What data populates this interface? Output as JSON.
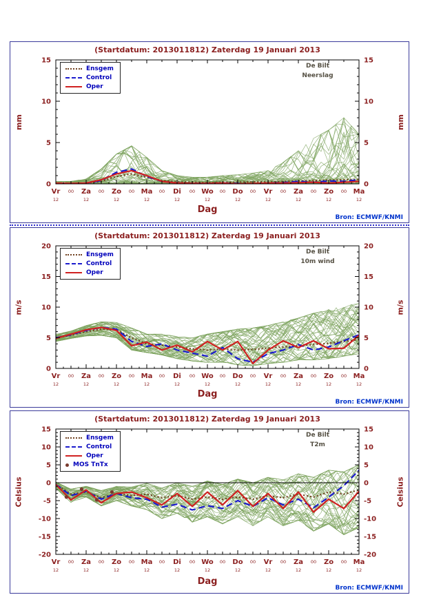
{
  "chart_data": [
    {
      "type": "line",
      "title": "(Startdatum: 2013011812)  Zaterdag 19 Januari  2013",
      "station": "De Bilt",
      "variable": "Neerslag",
      "ylabel": "mm",
      "xlabel": "Dag",
      "source": "Bron: ECMWF/KNMI",
      "ylim": [
        0,
        15
      ],
      "yticks": [
        0,
        5,
        10,
        15
      ],
      "y_minor_step": 1,
      "x_days": 10,
      "day_labels": [
        "Vr",
        "Za",
        "Zo",
        "Ma",
        "Di",
        "Wo",
        "Do",
        "Vr",
        "Za",
        "Zo",
        "Ma"
      ],
      "hour_label_mid": "00",
      "hour_label_day": "12",
      "legend": [
        {
          "label": "Ensgem",
          "style": "dotted",
          "color": "#70401f"
        },
        {
          "label": "Control",
          "style": "dashed",
          "color": "#1a1acd"
        },
        {
          "label": "Oper",
          "style": "solid",
          "color": "#d02020"
        }
      ],
      "series": [
        {
          "name": "Ensgem",
          "color": "#70401f",
          "style": "dotted",
          "values": [
            0.05,
            0.05,
            0.1,
            0.3,
            0.9,
            1.2,
            0.8,
            0.4,
            0.25,
            0.2,
            0.15,
            0.2,
            0.2,
            0.25,
            0.25,
            0.3,
            0.35,
            0.4,
            0.45,
            0.5,
            0.55
          ]
        },
        {
          "name": "Control",
          "color": "#1a1acd",
          "style": "dashed",
          "values": [
            0.05,
            0,
            0.1,
            0.4,
            1.4,
            1.8,
            0.9,
            0.3,
            0.1,
            0.05,
            0.05,
            0.1,
            0.05,
            0,
            0.1,
            0.15,
            0.3,
            0.2,
            0.35,
            0.3,
            0.5
          ]
        },
        {
          "name": "Oper",
          "color": "#d02020",
          "style": "solid",
          "values": [
            0.1,
            0.05,
            0.1,
            0.5,
            1.2,
            1.6,
            1,
            0.3,
            0.1,
            0.05,
            0.05,
            0.1,
            0,
            0.05,
            0.1,
            0.1,
            0.15,
            0.2,
            0.1,
            0.2,
            0.3
          ]
        }
      ],
      "ensemble": {
        "count": 50,
        "color": "#7ca35c",
        "bias": 2.6,
        "min": [
          0,
          0,
          0,
          0,
          0,
          0,
          0,
          0,
          0,
          0,
          0,
          0,
          0,
          0,
          0,
          0,
          0,
          0,
          0,
          0,
          0
        ],
        "max": [
          0.3,
          0.3,
          0.6,
          1.8,
          3.6,
          4.6,
          3.2,
          1.6,
          1,
          0.8,
          0.8,
          1,
          1.1,
          1.3,
          1.6,
          2.6,
          4,
          5.5,
          6.5,
          8,
          6
        ]
      }
    },
    {
      "type": "line",
      "title": "(Startdatum: 2013011812)  Zaterdag 19 Januari  2013",
      "station": "De Bilt",
      "variable": "10m wind",
      "ylabel": "m/s",
      "xlabel": "Dag",
      "source": "Bron: ECMWF/KNMI",
      "ylim": [
        0,
        20
      ],
      "yticks": [
        0,
        5,
        10,
        15,
        20
      ],
      "y_minor_step": 1,
      "x_days": 10,
      "day_labels": [
        "Vr",
        "Za",
        "Zo",
        "Ma",
        "Di",
        "Wo",
        "Do",
        "Vr",
        "Za",
        "Zo",
        "Ma"
      ],
      "hour_label_mid": "00",
      "hour_label_day": "12",
      "legend": [
        {
          "label": "Ensgem",
          "style": "dotted",
          "color": "#70401f"
        },
        {
          "label": "Control",
          "style": "dashed",
          "color": "#1a1acd"
        },
        {
          "label": "Oper",
          "style": "solid",
          "color": "#d02020"
        }
      ],
      "series": [
        {
          "name": "Ensgem",
          "color": "#70401f",
          "style": "dotted",
          "values": [
            5,
            5.4,
            6,
            6.4,
            6.3,
            5,
            4,
            3.8,
            3.5,
            3.2,
            3,
            3.2,
            3,
            3.1,
            3.3,
            3.5,
            3.7,
            3.9,
            4.1,
            4.4,
            4.7
          ]
        },
        {
          "name": "Control",
          "color": "#1a1acd",
          "style": "dashed",
          "values": [
            5,
            5.5,
            6.2,
            6.7,
            6.4,
            4.4,
            3.6,
            4,
            3,
            2.5,
            2,
            3.4,
            1.6,
            1,
            2.4,
            3,
            3.9,
            3,
            3.5,
            4.5,
            5.5
          ]
        },
        {
          "name": "Oper",
          "color": "#d02020",
          "style": "solid",
          "values": [
            4.9,
            5.6,
            6.3,
            6.7,
            6.2,
            3.7,
            4.3,
            3,
            3.8,
            2.7,
            4.4,
            3,
            4.4,
            0.8,
            3,
            4.5,
            3.4,
            4.5,
            3.2,
            3.3,
            5.4
          ]
        }
      ],
      "ensemble": {
        "count": 50,
        "color": "#7ca35c",
        "bias": 1,
        "min": [
          4.4,
          4.9,
          5.3,
          5.4,
          5,
          3,
          2.6,
          2.2,
          1.6,
          1.2,
          1,
          1,
          0.6,
          0.4,
          0.8,
          1,
          1.4,
          1.4,
          1.6,
          2,
          2.4
        ],
        "max": [
          5.6,
          6.1,
          7,
          7.6,
          7.5,
          6.6,
          5.6,
          5.6,
          5.2,
          5,
          5.6,
          6,
          6.4,
          6.6,
          7,
          7.6,
          8.2,
          9,
          9.6,
          10.2,
          10.6
        ]
      }
    },
    {
      "type": "line",
      "title": "(Startdatum: 2013011812)  Zaterdag 19 Januari  2013",
      "station": "De Bilt",
      "variable": "T2m",
      "ylabel": "Celsius",
      "xlabel": "Dag",
      "source": "Bron: ECMWF/KNMI",
      "ylim": [
        -20,
        15
      ],
      "yticks": [
        -20,
        -15,
        -10,
        -5,
        0,
        5,
        10,
        15
      ],
      "y_minor_step": 1,
      "x_days": 10,
      "zero_line": true,
      "day_labels": [
        "Vr",
        "Za",
        "Zo",
        "Ma",
        "Di",
        "Wo",
        "Do",
        "Vr",
        "Za",
        "Zo",
        "Ma"
      ],
      "hour_label_mid": "00",
      "hour_label_day": "12",
      "legend": [
        {
          "label": "Ensgem",
          "style": "dotted",
          "color": "#70401f"
        },
        {
          "label": "Control",
          "style": "dashed",
          "color": "#1a1acd"
        },
        {
          "label": "Oper",
          "style": "solid",
          "color": "#d02020"
        },
        {
          "label": "MOS TnTx",
          "style": "dot",
          "color": "#7a3b2e"
        }
      ],
      "series": [
        {
          "name": "Ensgem",
          "color": "#70401f",
          "style": "dotted",
          "values": [
            -0.5,
            -3.2,
            -2.6,
            -4.2,
            -3,
            -3.6,
            -3.2,
            -4.2,
            -3.6,
            -4.6,
            -4,
            -4.6,
            -4,
            -4.6,
            -3.6,
            -4.2,
            -3.2,
            -4,
            -2.6,
            -3.2,
            -2
          ]
        },
        {
          "name": "Control",
          "color": "#1a1acd",
          "style": "dashed",
          "values": [
            -0.5,
            -3.6,
            -2.4,
            -4.6,
            -3,
            -4.2,
            -4.6,
            -6.8,
            -6,
            -7.6,
            -6.4,
            -7.2,
            -5,
            -6.6,
            -4.2,
            -6.2,
            -4.6,
            -7,
            -4,
            -0.8,
            3.5
          ]
        },
        {
          "name": "Oper",
          "color": "#d02020",
          "style": "solid",
          "values": [
            -0.5,
            -4.8,
            -2,
            -5.6,
            -3,
            -2.6,
            -4.2,
            -6.2,
            -3,
            -6.6,
            -2.6,
            -6.2,
            -2.2,
            -6.6,
            -3,
            -7.2,
            -2.6,
            -8.2,
            -4.6,
            -7.2,
            -2.4
          ]
        }
      ],
      "mos_points": [
        [
          0.35,
          -4.0
        ],
        [
          0.85,
          -1.8
        ],
        [
          1.35,
          -4.8
        ],
        [
          1.85,
          -2.6
        ]
      ],
      "ensemble": {
        "count": 50,
        "color": "#7ca35c",
        "bias": 1,
        "min": [
          -1.5,
          -5.5,
          -4,
          -6.5,
          -5,
          -6.5,
          -7.5,
          -10,
          -8.5,
          -11,
          -9.5,
          -11.5,
          -9.5,
          -12,
          -9.5,
          -12,
          -10.5,
          -13.5,
          -11.5,
          -14.5,
          -12.5
        ],
        "max": [
          0.2,
          -1.8,
          -1,
          -2.2,
          -1,
          -1.2,
          -0.2,
          -1.5,
          0,
          -1,
          0.5,
          -0.5,
          1,
          0,
          1.5,
          0.8,
          2.5,
          1.5,
          3.5,
          3,
          5
        ]
      }
    }
  ]
}
